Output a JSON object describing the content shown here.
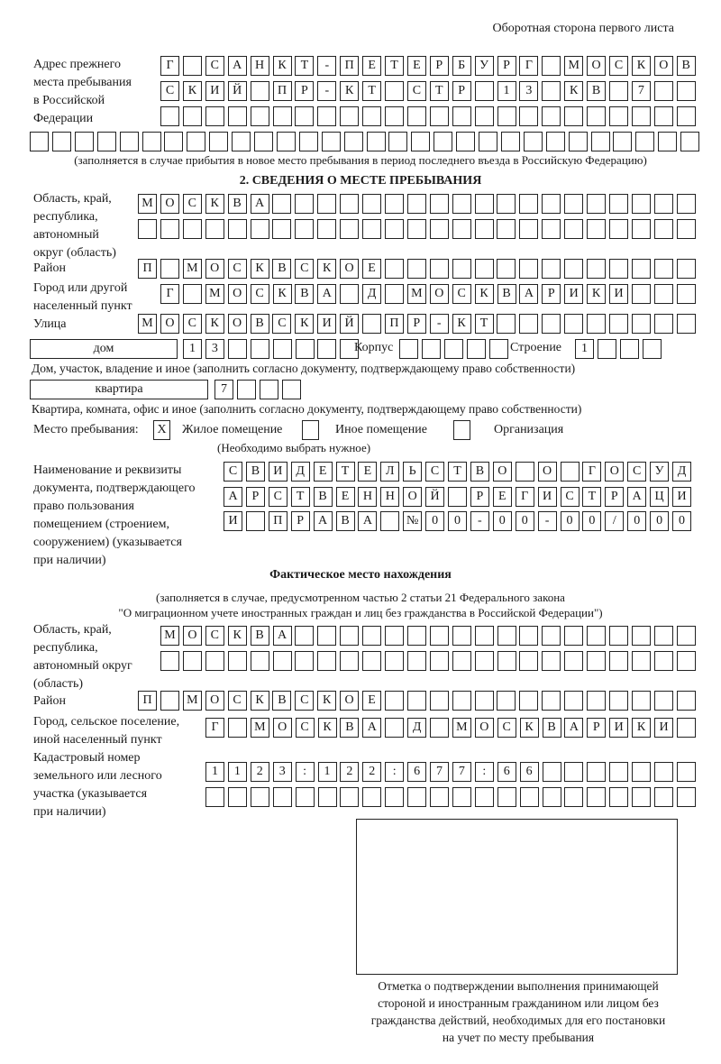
{
  "header": {
    "page_side": "Оборотная сторона первого листа"
  },
  "previous_address": {
    "label": "Адрес прежнего\nместа пребывания\nв Российской\nФедерации",
    "rows": [
      "Г САНКТ-ПЕТЕРБУРГ МОСКОВ",
      "СКИЙ ПР-КТ СТР 13 КВ 7  ",
      "                        ",
      "                              "
    ],
    "note": "(заполняется в случае прибытия в новое место пребывания в период последнего въезда в Российскую Федерацию)"
  },
  "section2": {
    "title": "2. СВЕДЕНИЯ О МЕСТЕ ПРЕБЫВАНИЯ",
    "region_label": "Область, край,\nреспублика,\nавтономный\nокруг (область)",
    "region_rows": [
      "МОСКВА                   ",
      "                         "
    ],
    "district_label": "Район",
    "district_row": "П МОСКВСКОЕ              ",
    "city_label": "Город или другой\nнаселенный пункт",
    "city_row": "Г МОСКВА Д МОСКВАРИКИ   ",
    "street_label": "Улица",
    "street_row": "МОСКОВСКИЙ ПР-КТ         ",
    "house_type": "дом",
    "house_row": "13      ",
    "korpus_label": "Корпус",
    "korpus_row": "     ",
    "building_label": "Строение",
    "building_row": "1   ",
    "house_caption": "Дом, участок, владение и иное (заполнить согласно документу, подтверждающему право собственности)",
    "flat_type": "квартира",
    "flat_row": "7   ",
    "flat_caption": "Квартира, комната, офис и иное (заполнить согласно документу, подтверждающему право собственности)",
    "stay_place_label": "Место пребывания:",
    "options": [
      {
        "label": "Жилое помещение",
        "mark": "X"
      },
      {
        "label": "Иное помещение",
        "mark": ""
      },
      {
        "label": "Организация",
        "mark": ""
      }
    ],
    "choose_note": "(Необходимо выбрать нужное)",
    "document_label": "Наименование и реквизиты\nдокумента, подтверждающего\nправо пользования\nпомещением (строением,\nсооружением) (указывается\nпри наличии)",
    "document_rows": [
      "СВИДЕТЕЛЬСТВО О ГОСУД",
      "АРСТВЕННОЙ РЕГИСТРАЦИ",
      "И ПРАВА №00-00-00/000"
    ]
  },
  "actual_location": {
    "title": "Фактическое место нахождения",
    "note_line1": "(заполняется в случае, предусмотренном частью 2 статьи 21 Федерального закона",
    "note_line2": "\"О миграционном учете иностранных граждан и лиц без гражданства в Российской Федерации\")",
    "region_label": "Область, край,\nреспублика,\nавтономный округ\n(область)",
    "region_rows": [
      "МОСКВА                  ",
      "                        "
    ],
    "district_label": "Район",
    "district_row": "П МОСКВСКОЕ              ",
    "city_label": "Город, сельское поселение,\nиной населенный пункт",
    "city_row": "Г МОСКВА Д МОСКВАРИКИ ",
    "cadastral_label": "Кадастровый номер\nземельного или лесного\nучастка (указывается\nпри наличии)",
    "cadastral_rows": [
      "1123:122:677:66       ",
      "                      "
    ]
  },
  "confirmation": {
    "caption": "Отметка о подтверждении выполнения принимающей\nстороной и иностранным гражданином или лицом без\nгражданства действий, необходимых для его постановки\nна учет по месту пребывания"
  }
}
